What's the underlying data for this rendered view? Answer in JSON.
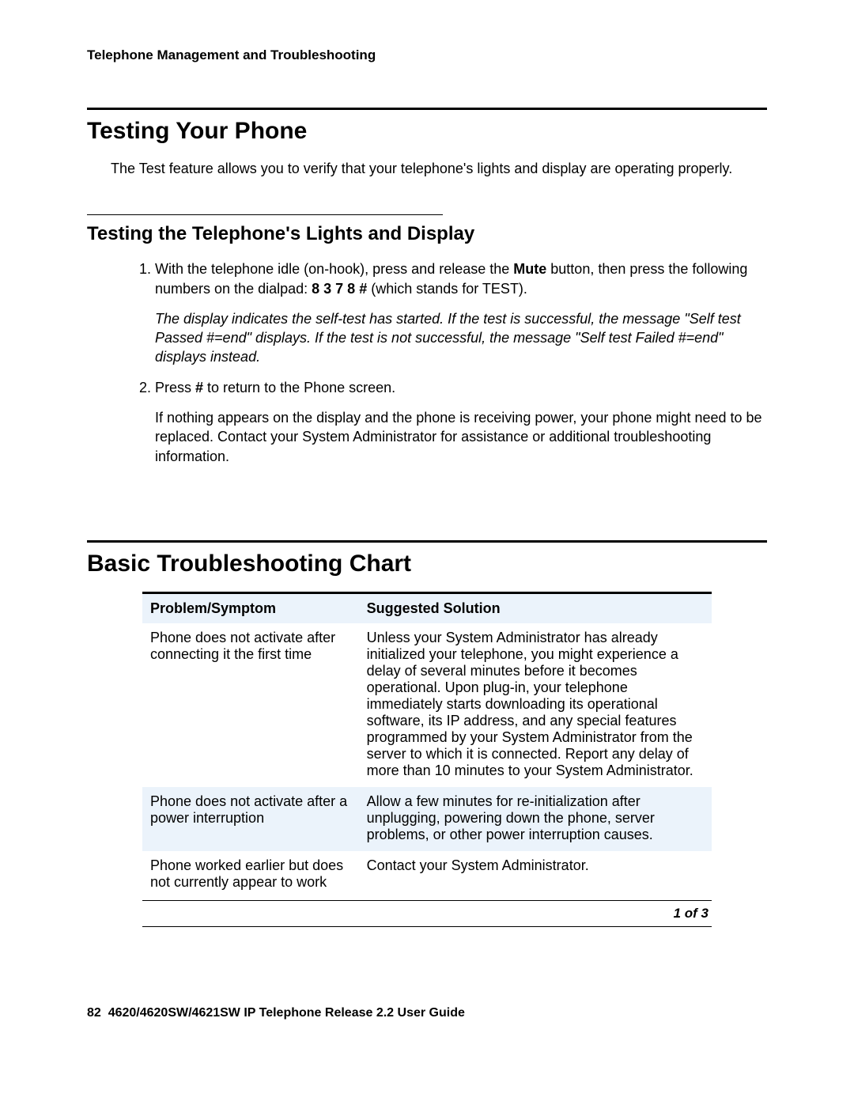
{
  "header": {
    "running": "Telephone Management and Troubleshooting"
  },
  "section1": {
    "title": "Testing Your Phone",
    "intro": "The Test feature allows you to verify that your telephone's lights and display are operating properly."
  },
  "section2": {
    "title": "Testing the Telephone's Lights and Display",
    "steps": {
      "s1_pre": "With the telephone idle (on-hook), press and release the ",
      "s1_mute": "Mute",
      "s1_mid": " button, then press the following numbers on the dialpad: ",
      "s1_code": "8 3 7 8 #",
      "s1_post": " (which stands for TEST).",
      "s1_result": "The display indicates the self-test has started. If the test is successful, the message \"Self test Passed #=end\" displays. If the test is not successful, the message \"Self test Failed #=end\" displays instead.",
      "s2_pre": "Press ",
      "s2_hash": "#",
      "s2_post": " to return to the Phone screen.",
      "s2_follow": "If nothing appears on the display and the phone is receiving power, your phone might need to be replaced. Contact your System Administrator for assistance or additional troubleshooting information."
    }
  },
  "section3": {
    "title": "Basic Troubleshooting Chart",
    "table": {
      "columns": [
        "Problem/Symptom",
        "Suggested Solution"
      ],
      "header_bg": "#ebf3fb",
      "alt_row_bg": "#ebf3fb",
      "col_widths": [
        "38%",
        "62%"
      ],
      "rows": [
        {
          "problem": "Phone does not activate after connecting it the first time",
          "solution": "Unless your System Administrator has already initialized your telephone, you might experience a delay of several minutes before it becomes operational. Upon plug-in, your telephone immediately starts downloading its operational software, its IP address, and any special features programmed by your System Administrator from the server to which it is connected. Report any delay of more than 10 minutes to your System Administrator."
        },
        {
          "problem": "Phone does not activate after a power interruption",
          "solution": "Allow a few minutes for re-initialization after unplugging, powering down the phone, server problems, or other power interruption causes."
        },
        {
          "problem": "Phone worked earlier but does not currently appear to work",
          "solution": "Contact your System Administrator."
        }
      ],
      "pager": "1 of 3"
    }
  },
  "footer": {
    "page_number": "82",
    "doc_title": "4620/4620SW/4621SW IP Telephone Release 2.2 User Guide"
  }
}
